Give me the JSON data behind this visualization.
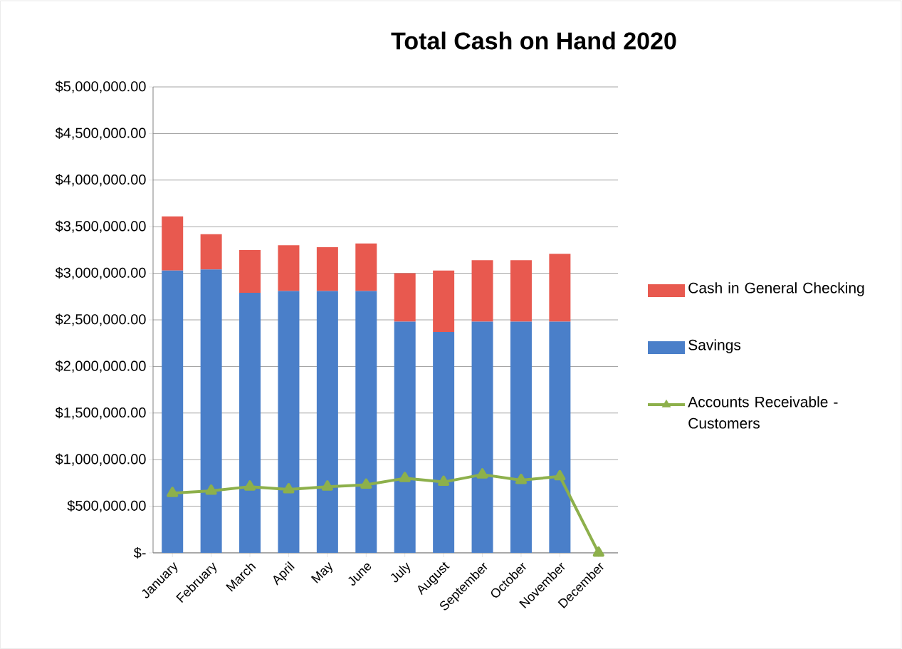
{
  "chart_data": {
    "type": "bar",
    "title": "Total Cash on Hand 2020",
    "categories": [
      "January",
      "February",
      "March",
      "April",
      "May",
      "June",
      "July",
      "August",
      "September",
      "October",
      "November",
      "December"
    ],
    "stacked": true,
    "series": [
      {
        "name": "Savings",
        "color": "#4a7fc9",
        "values": [
          3030000,
          3040000,
          2790000,
          2810000,
          2810000,
          2810000,
          2480000,
          2370000,
          2480000,
          2480000,
          2480000,
          null
        ]
      },
      {
        "name": "Cash in General Checking",
        "color": "#e8594f",
        "values": [
          580000,
          380000,
          460000,
          490000,
          470000,
          510000,
          520000,
          660000,
          660000,
          660000,
          730000,
          null
        ]
      },
      {
        "name": "Accounts Receivable - Customers",
        "type": "line",
        "color": "#8db04b",
        "marker": "triangle",
        "values": [
          640000,
          665000,
          710000,
          680000,
          710000,
          730000,
          800000,
          760000,
          840000,
          780000,
          820000,
          0
        ]
      }
    ],
    "ylim": [
      0,
      5000000
    ],
    "yticks": [
      {
        "value": 0,
        "label": "$-"
      },
      {
        "value": 500000,
        "label": "$500,000.00"
      },
      {
        "value": 1000000,
        "label": "$1,000,000.00"
      },
      {
        "value": 1500000,
        "label": "$1,500,000.00"
      },
      {
        "value": 2000000,
        "label": "$2,000,000.00"
      },
      {
        "value": 2500000,
        "label": "$2,500,000.00"
      },
      {
        "value": 3000000,
        "label": "$3,000,000.00"
      },
      {
        "value": 3500000,
        "label": "$3,500,000.00"
      },
      {
        "value": 4000000,
        "label": "$4,000,000.00"
      },
      {
        "value": 4500000,
        "label": "$4,500,000.00"
      },
      {
        "value": 5000000,
        "label": "$5,000,000.00"
      }
    ],
    "grid": "y",
    "legend": "right"
  }
}
